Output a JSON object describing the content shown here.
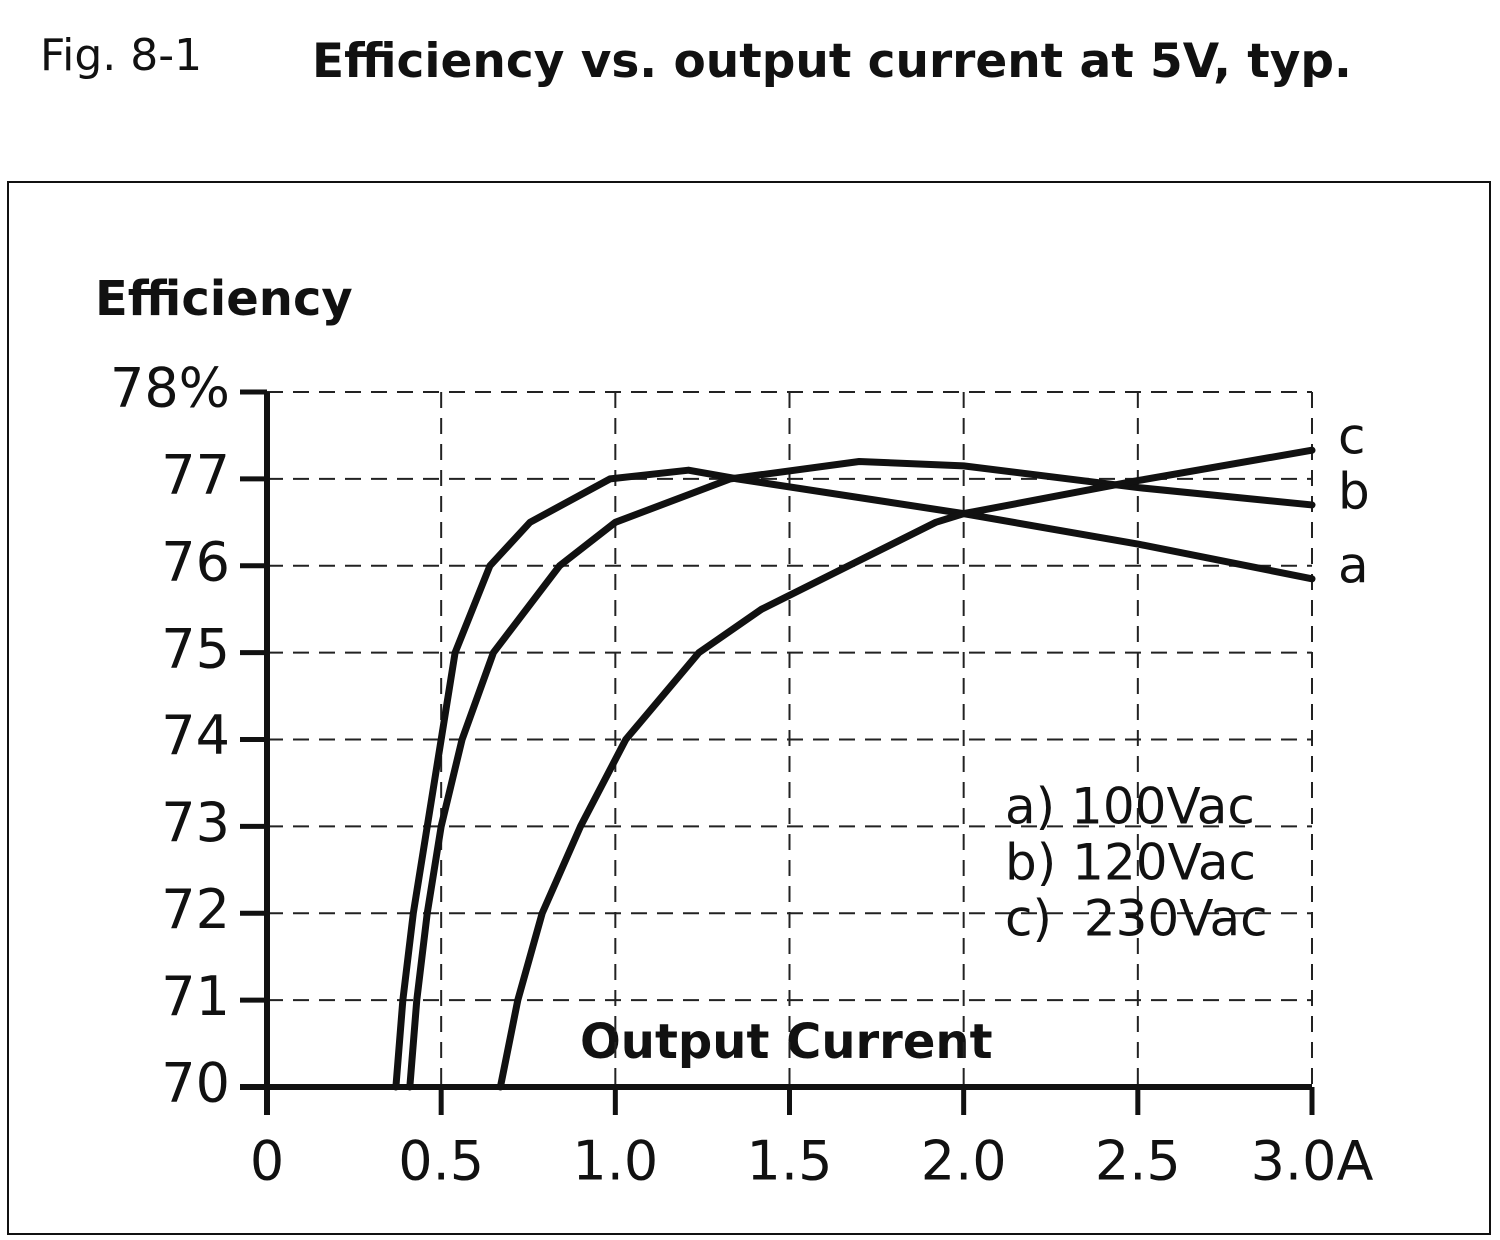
{
  "chart_data": {
    "type": "line",
    "figure_label": "Fig. 8-1",
    "title": "Efficiency vs. output current at 5V, typ.",
    "y_label": "Efficiency",
    "x_label": "Output Current",
    "xlim": [
      0,
      3
    ],
    "ylim": [
      70,
      78
    ],
    "xticks": [
      0,
      0.5,
      {
        "value": 1,
        "label": "1.0"
      },
      1.5,
      {
        "value": 2,
        "label": "2.0"
      },
      2.5,
      {
        "value": 3,
        "label": "3.0A"
      }
    ],
    "yticks": [
      70,
      71,
      72,
      73,
      74,
      75,
      76,
      77,
      {
        "value": 78,
        "label": "78%"
      }
    ],
    "grid": true,
    "series": [
      {
        "name": "a) 100Vac",
        "end_label": "a",
        "color": "#111111",
        "x": [
          0.37,
          0.39,
          0.42,
          0.46,
          0.5,
          0.54,
          0.64,
          0.755,
          0.985,
          1.21,
          1.35,
          2.0,
          2.5,
          3.0
        ],
        "values": [
          70,
          71,
          72,
          73,
          74,
          75,
          76,
          76.5,
          77,
          77.1,
          77.0,
          76.6,
          76.25,
          75.85
        ]
      },
      {
        "name": "b) 120Vac",
        "end_label": "b",
        "color": "#111111",
        "x": [
          0.41,
          0.43,
          0.46,
          0.5,
          0.56,
          0.65,
          0.84,
          1.0,
          1.33,
          1.7,
          2.0,
          2.5,
          3.0
        ],
        "values": [
          70,
          71,
          72,
          73,
          74,
          75,
          76,
          76.5,
          77,
          77.2,
          77.15,
          76.9,
          76.7
        ]
      },
      {
        "name": "c)  230Vac",
        "end_label": "c",
        "color": "#111111",
        "x": [
          0.67,
          0.72,
          0.79,
          0.9,
          1.03,
          1.24,
          1.42,
          1.67,
          1.92,
          2.0,
          2.5,
          3.0
        ],
        "values": [
          70,
          71,
          72,
          73,
          74,
          75,
          75.5,
          76,
          76.5,
          76.6,
          76.98,
          77.33
        ]
      }
    ]
  }
}
